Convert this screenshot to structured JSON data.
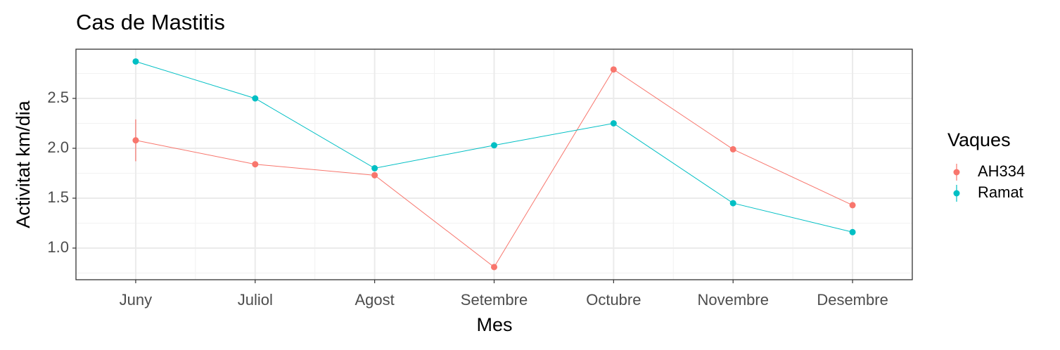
{
  "chart_data": {
    "type": "line",
    "title": "Cas de Mastitis",
    "x_label": "Mes",
    "y_label": "Activitat km/dia",
    "categories": [
      "Juny",
      "Juliol",
      "Agost",
      "Setembre",
      "Octubre",
      "Novembre",
      "Desembre"
    ],
    "legend_title": "Vaques",
    "legend": "right",
    "grid": true,
    "series": [
      {
        "name": "AH334",
        "color": "#F8766D",
        "values": [
          2.08,
          1.84,
          1.73,
          0.81,
          2.79,
          1.99,
          1.43
        ],
        "errors": [
          0.21,
          0,
          0,
          0,
          0,
          0,
          0
        ]
      },
      {
        "name": "Ramat",
        "color": "#00BFC4",
        "values": [
          2.87,
          2.5,
          1.8,
          2.03,
          2.25,
          1.45,
          1.16
        ],
        "errors": [
          0,
          0,
          0,
          0,
          0,
          0,
          0
        ]
      }
    ],
    "ylim": [
      0.683,
      2.993
    ],
    "yticks": [
      {
        "value": 1,
        "label": "1.0"
      },
      1.5,
      {
        "value": 2,
        "label": "2.0"
      },
      2.5
    ]
  }
}
